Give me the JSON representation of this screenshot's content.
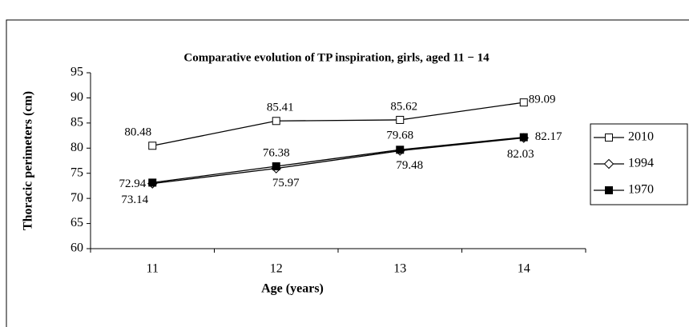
{
  "chart_data": {
    "type": "line",
    "title": "Comparative evolution of TP inspiration, girls, aged 11 − 14",
    "x_label": "Age (years)",
    "y_label": "Thoracic perimeters (cm)",
    "categories": [
      "11",
      "12",
      "13",
      "14"
    ],
    "series": [
      {
        "name": "2010",
        "color": "#000000",
        "marker": "square-open",
        "values": [
          80.48,
          85.41,
          85.62,
          89.09
        ]
      },
      {
        "name": "1994",
        "color": "#000000",
        "marker": "diamond-open",
        "values": [
          72.94,
          75.97,
          79.48,
          82.03
        ]
      },
      {
        "name": "1970",
        "color": "#000000",
        "marker": "square-filled",
        "values": [
          73.14,
          76.38,
          79.68,
          82.17
        ]
      }
    ],
    "ylim": [
      60,
      95
    ],
    "yticks": [
      60,
      65,
      70,
      75,
      80,
      85,
      90,
      95
    ],
    "grid": false,
    "legend": "right"
  }
}
